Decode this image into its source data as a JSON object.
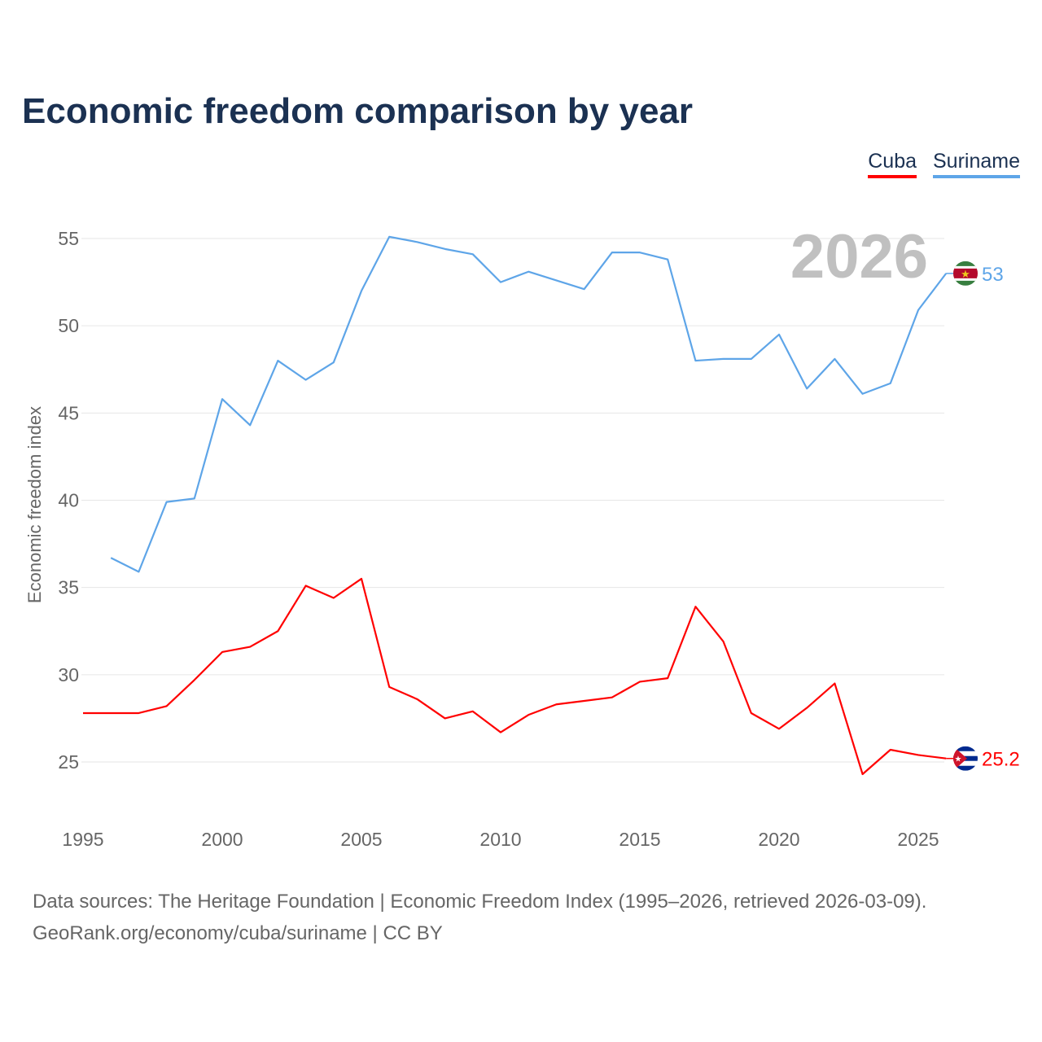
{
  "title": "Economic freedom comparison by year",
  "watermark_year": "2026",
  "footer": {
    "line1": "Data sources: The Heritage Foundation | Economic Freedom Index (1995–2026, retrieved 2026-03-09).",
    "line2": "GeoRank.org/economy/cuba/suriname | CC BY"
  },
  "chart_data": {
    "type": "line",
    "title": "Economic freedom comparison by year",
    "xlabel": "",
    "ylabel": "Economic freedom index",
    "xlim": [
      1995,
      2026
    ],
    "ylim": [
      22,
      57
    ],
    "xticks": [
      1995,
      2000,
      2005,
      2010,
      2015,
      2020,
      2025
    ],
    "yticks": [
      25,
      30,
      35,
      40,
      45,
      50,
      55
    ],
    "grid": true,
    "legend": "top-right",
    "series": [
      {
        "name": "Cuba",
        "color": "#ff0000",
        "end_label": "25.2",
        "flag": "cuba-flag",
        "x": [
          1995,
          1996,
          1997,
          1998,
          1999,
          2000,
          2001,
          2002,
          2003,
          2004,
          2005,
          2006,
          2007,
          2008,
          2009,
          2010,
          2011,
          2012,
          2013,
          2014,
          2015,
          2016,
          2017,
          2018,
          2019,
          2020,
          2021,
          2022,
          2023,
          2024,
          2025,
          2026
        ],
        "values": [
          27.8,
          27.8,
          27.8,
          28.2,
          29.7,
          31.3,
          31.6,
          32.5,
          35.1,
          34.4,
          35.5,
          29.3,
          28.6,
          27.5,
          27.9,
          26.7,
          27.7,
          28.3,
          28.5,
          28.7,
          29.6,
          29.8,
          33.9,
          31.9,
          27.8,
          26.9,
          28.1,
          29.5,
          24.3,
          25.7,
          25.4,
          25.2
        ]
      },
      {
        "name": "Suriname",
        "color": "#5ea5e8",
        "end_label": "53",
        "flag": "suriname-flag",
        "x": [
          1996,
          1997,
          1998,
          1999,
          2000,
          2001,
          2002,
          2003,
          2004,
          2005,
          2006,
          2007,
          2008,
          2009,
          2010,
          2011,
          2012,
          2013,
          2014,
          2015,
          2016,
          2017,
          2018,
          2019,
          2020,
          2021,
          2022,
          2023,
          2024,
          2025,
          2026
        ],
        "values": [
          36.7,
          35.9,
          39.9,
          40.1,
          45.8,
          44.3,
          48.0,
          46.9,
          47.9,
          52.0,
          55.1,
          54.8,
          54.4,
          54.1,
          52.5,
          53.1,
          52.6,
          52.1,
          54.2,
          54.2,
          53.8,
          48.0,
          48.1,
          48.1,
          49.5,
          46.4,
          48.1,
          46.1,
          46.7,
          50.9,
          53.0
        ]
      }
    ]
  }
}
